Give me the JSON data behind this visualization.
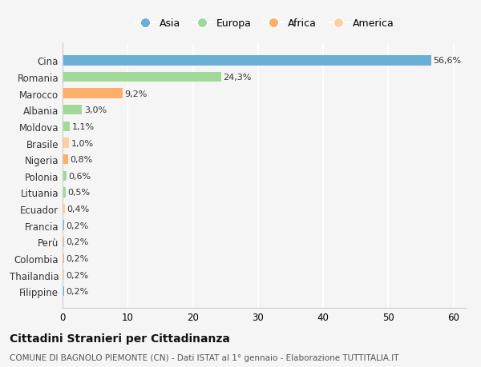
{
  "labels": [
    "Filippine",
    "Thailandia",
    "Colombia",
    "Perù",
    "Francia",
    "Ecuador",
    "Lituania",
    "Polonia",
    "Nigeria",
    "Brasile",
    "Moldova",
    "Albania",
    "Marocco",
    "Romania",
    "Cina"
  ],
  "values": [
    0.2,
    0.2,
    0.2,
    0.2,
    0.2,
    0.4,
    0.5,
    0.6,
    0.8,
    1.0,
    1.1,
    3.0,
    9.2,
    24.3,
    56.6
  ],
  "value_labels": [
    "0,2%",
    "0,2%",
    "0,2%",
    "0,2%",
    "0,2%",
    "0,4%",
    "0,5%",
    "0,6%",
    "0,8%",
    "1,0%",
    "1,1%",
    "3,0%",
    "9,2%",
    "24,3%",
    "56,6%"
  ],
  "bar_colors": [
    "#6baed6",
    "#fdd0a2",
    "#fdae6b",
    "#fdae6b",
    "#6baed6",
    "#fdd0a2",
    "#a1d99b",
    "#a1d99b",
    "#fdae6b",
    "#fdd0a2",
    "#a1d99b",
    "#a1d99b",
    "#fdae6b",
    "#a1d99b",
    "#6baed6"
  ],
  "xlim": [
    0,
    62
  ],
  "xticks": [
    0,
    10,
    20,
    30,
    40,
    50,
    60
  ],
  "title": "Cittadini Stranieri per Cittadinanza",
  "subtitle": "COMUNE DI BAGNOLO PIEMONTE (CN) - Dati ISTAT al 1° gennaio - Elaborazione TUTTITALIA.IT",
  "background_color": "#f5f5f5",
  "grid_color": "#ffffff",
  "bar_height": 0.6,
  "legend_entries": [
    "Asia",
    "Europa",
    "Africa",
    "America"
  ],
  "legend_colors": [
    "#6baed6",
    "#a1d99b",
    "#fdae6b",
    "#fdd0a2"
  ]
}
